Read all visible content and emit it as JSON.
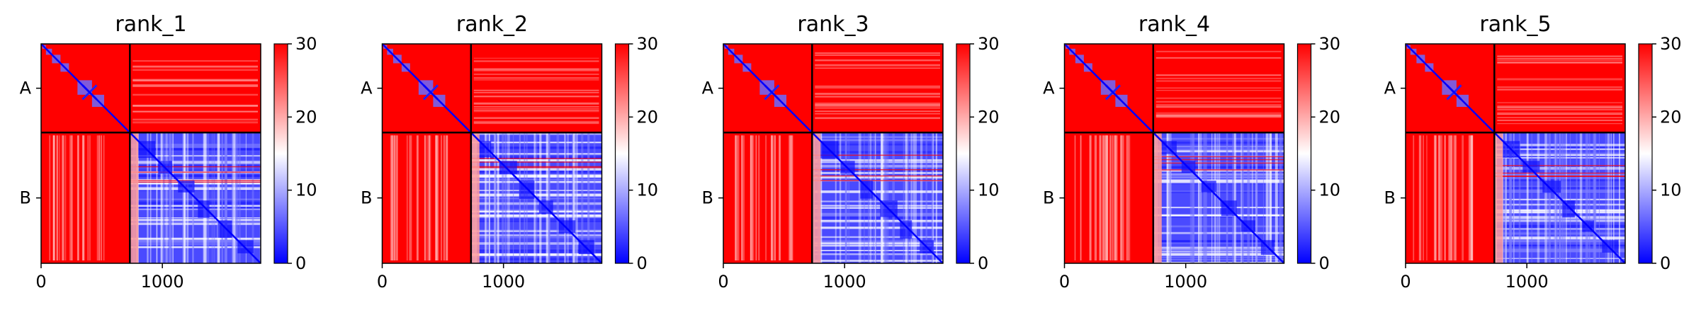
{
  "figure": {
    "panels_count": 5
  },
  "chart_data": [
    {
      "type": "heatmap",
      "title": "rank_1",
      "x_ticks": [
        "0",
        "1000"
      ],
      "x_tick_values": [
        0,
        1000
      ],
      "x_range": [
        0,
        1811
      ],
      "y_tick_labels": [
        "A",
        "B"
      ],
      "chain_boundary": 732,
      "colormap": "bwr",
      "colorbar": {
        "range": [
          0,
          30
        ],
        "ticks": [
          "0",
          "10",
          "20",
          "30"
        ],
        "tick_values": [
          0,
          10,
          20,
          30
        ]
      },
      "colors": {
        "low": "#0000ff",
        "mid": "#ffffff",
        "high": "#ff0000",
        "boundary": "#000000"
      },
      "grid": false
    },
    {
      "type": "heatmap",
      "title": "rank_2",
      "x_ticks": [
        "0",
        "1000"
      ],
      "x_tick_values": [
        0,
        1000
      ],
      "x_range": [
        0,
        1811
      ],
      "y_tick_labels": [
        "A",
        "B"
      ],
      "chain_boundary": 732,
      "colormap": "bwr",
      "colorbar": {
        "range": [
          0,
          30
        ],
        "ticks": [
          "0",
          "10",
          "20",
          "30"
        ],
        "tick_values": [
          0,
          10,
          20,
          30
        ]
      },
      "colors": {
        "low": "#0000ff",
        "mid": "#ffffff",
        "high": "#ff0000",
        "boundary": "#000000"
      },
      "grid": false
    },
    {
      "type": "heatmap",
      "title": "rank_3",
      "x_ticks": [
        "0",
        "1000"
      ],
      "x_tick_values": [
        0,
        1000
      ],
      "x_range": [
        0,
        1811
      ],
      "y_tick_labels": [
        "A",
        "B"
      ],
      "chain_boundary": 732,
      "colormap": "bwr",
      "colorbar": {
        "range": [
          0,
          30
        ],
        "ticks": [
          "0",
          "10",
          "20",
          "30"
        ],
        "tick_values": [
          0,
          10,
          20,
          30
        ]
      },
      "colors": {
        "low": "#0000ff",
        "mid": "#ffffff",
        "high": "#ff0000",
        "boundary": "#000000"
      },
      "grid": false
    },
    {
      "type": "heatmap",
      "title": "rank_4",
      "x_ticks": [
        "0",
        "1000"
      ],
      "x_tick_values": [
        0,
        1000
      ],
      "x_range": [
        0,
        1811
      ],
      "y_tick_labels": [
        "A",
        "B"
      ],
      "chain_boundary": 732,
      "colormap": "bwr",
      "colorbar": {
        "range": [
          0,
          30
        ],
        "ticks": [
          "0",
          "10",
          "20",
          "30"
        ],
        "tick_values": [
          0,
          10,
          20,
          30
        ]
      },
      "colors": {
        "low": "#0000ff",
        "mid": "#ffffff",
        "high": "#ff0000",
        "boundary": "#000000"
      },
      "grid": false
    },
    {
      "type": "heatmap",
      "title": "rank_5",
      "x_ticks": [
        "0",
        "1000"
      ],
      "x_tick_values": [
        0,
        1000
      ],
      "x_range": [
        0,
        1811
      ],
      "y_tick_labels": [
        "A",
        "B"
      ],
      "chain_boundary": 732,
      "colormap": "bwr",
      "colorbar": {
        "range": [
          0,
          30
        ],
        "ticks": [
          "0",
          "10",
          "20",
          "30"
        ],
        "tick_values": [
          0,
          10,
          20,
          30
        ]
      },
      "colors": {
        "low": "#0000ff",
        "mid": "#ffffff",
        "high": "#ff0000",
        "boundary": "#000000"
      },
      "grid": false
    }
  ]
}
